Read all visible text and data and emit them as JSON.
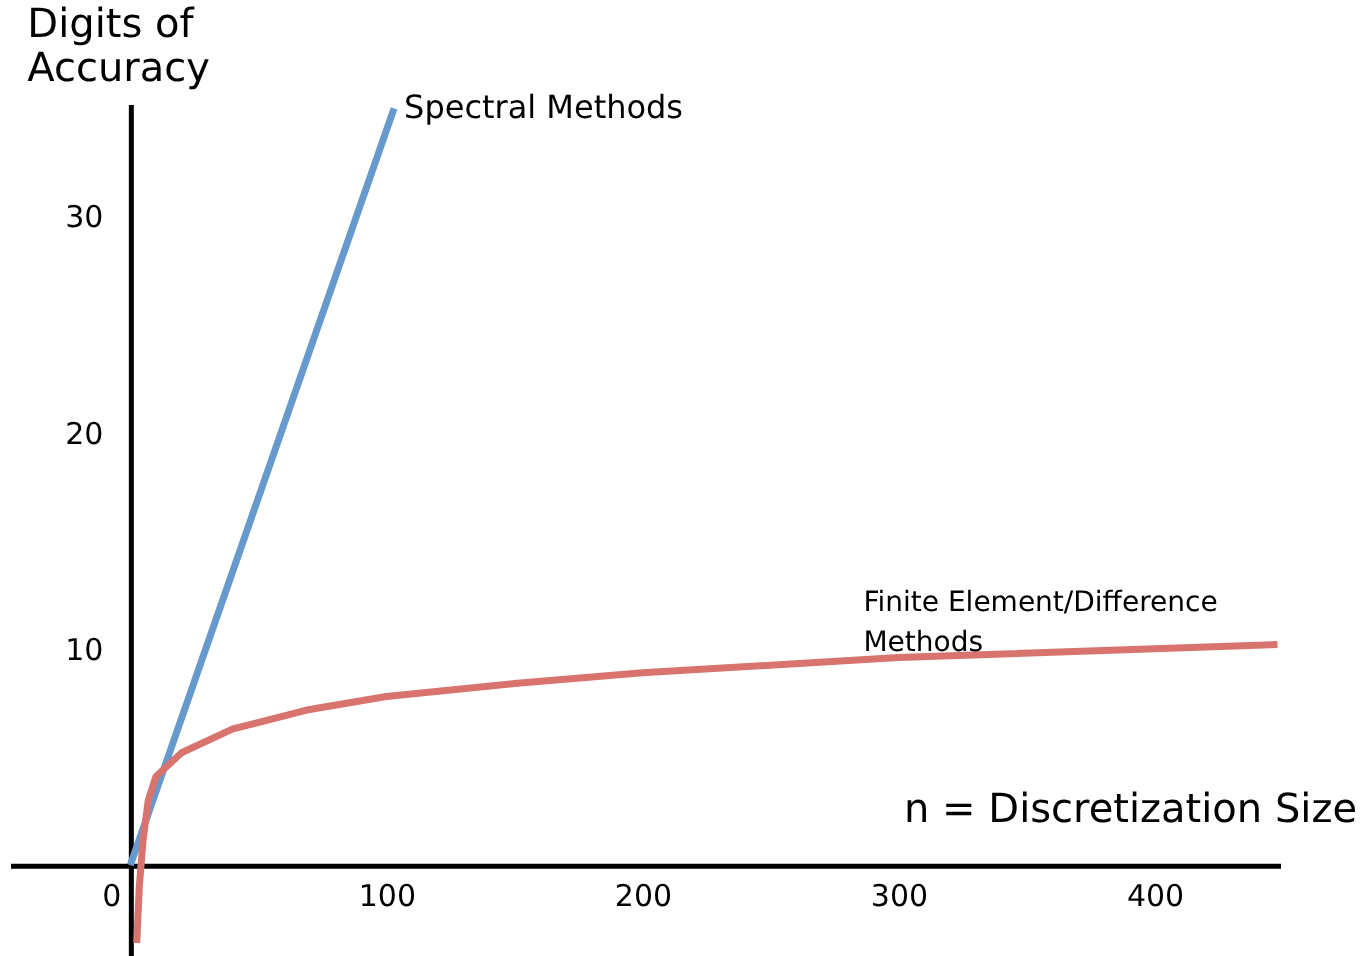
{
  "chart_data": {
    "type": "line",
    "xlabel": "n = Discretization Size",
    "ylabel": "Digits of\nAccuracy",
    "xlim": [
      -47,
      449
    ],
    "ylim": [
      -4.2,
      35.2
    ],
    "xticks": [
      0,
      100,
      200,
      300,
      400
    ],
    "yticks": [
      10,
      20,
      30
    ],
    "grid": false,
    "series": [
      {
        "name": "Spectral Methods",
        "color": "#6699cc",
        "x": [
          0,
          103
        ],
        "values": [
          0,
          35
        ]
      },
      {
        "name": "Finite Element/Difference\nMethods",
        "color": "#d9736e",
        "x": [
          2.5,
          3.5,
          5,
          7,
          10,
          20,
          40,
          70,
          100,
          150,
          200,
          300,
          448
        ],
        "values": [
          -3.6,
          -1.0,
          1.2,
          3.0,
          4.1,
          5.2,
          6.3,
          7.2,
          7.8,
          8.4,
          8.9,
          9.6,
          10.2
        ]
      }
    ]
  }
}
